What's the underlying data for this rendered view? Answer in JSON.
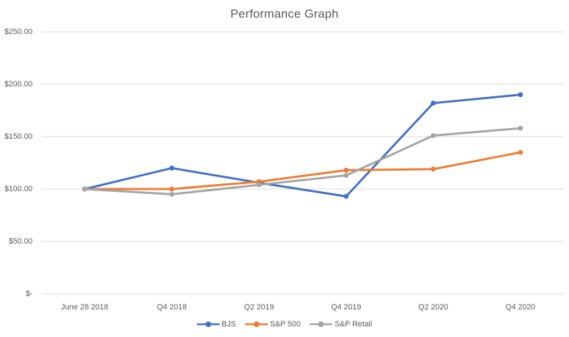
{
  "chart_data": {
    "type": "line",
    "title": "Performance Graph",
    "xlabel": "",
    "ylabel": "",
    "categories": [
      "June 28 2018",
      "Q4 2018",
      "Q2 2019",
      "Q4 2019",
      "Q2 2020",
      "Q4 2020"
    ],
    "series": [
      {
        "name": "BJS",
        "color": "#4472C4",
        "values": [
          100,
          120,
          106,
          93,
          182,
          190
        ]
      },
      {
        "name": "S&P 500",
        "color": "#ED7D31",
        "values": [
          100,
          100,
          107,
          118,
          119,
          135
        ]
      },
      {
        "name": "S&P Retail",
        "color": "#A5A5A5",
        "values": [
          100,
          95,
          104,
          113,
          151,
          158
        ]
      }
    ],
    "y_ticks": [
      {
        "value": 250,
        "label": "$250.00"
      },
      {
        "value": 200,
        "label": "$200.00"
      },
      {
        "value": 150,
        "label": "$150.00"
      },
      {
        "value": 100,
        "label": "$100.00"
      },
      {
        "value": 50,
        "label": "$50.00"
      },
      {
        "value": 0,
        "label": "$-"
      }
    ],
    "ylim": [
      0,
      250
    ],
    "grid": true,
    "legend_position": "bottom",
    "colors": {
      "gridline": "#D9D9D9",
      "axis_text": "#595959",
      "title_text": "#595959",
      "background": "#FFFFFF"
    }
  }
}
